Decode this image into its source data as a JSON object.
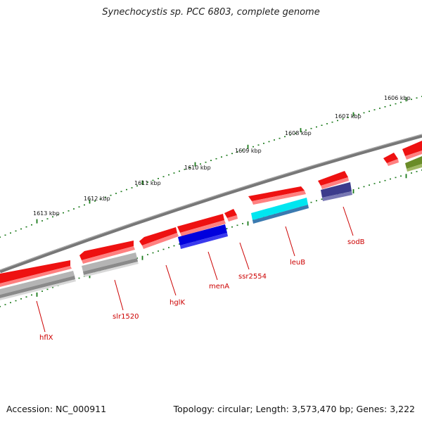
{
  "title": "Synechocystis sp. PCC 6803, complete genome",
  "footer": {
    "accession": "Accession: NC_000911",
    "topology": "Topology: circular; Length: 3,573,470 bp; Genes: 3,222"
  },
  "colors": {
    "backbone": "#787878",
    "tick": "#1a7a1a",
    "label": "#cc0000",
    "red_feature": "#ee1111",
    "gray_feature": "#b4b4b4",
    "blue_feature": "#0000dd",
    "cyan_feature": "#00e6f0",
    "purple_feature": "#3c3c8c",
    "olive_feature": "#6a8c28"
  },
  "scale_labels": [
    "1613 kbp",
    "1612 kbp",
    "1611 kbp",
    "1610 kbp",
    "1609 kbp",
    "1608 kbp",
    "1607 kbp",
    "1606 kbp"
  ],
  "genes": [
    "hflX",
    "slr1520",
    "hglK",
    "menA",
    "ssr2554",
    "leuB",
    "sodB"
  ]
}
